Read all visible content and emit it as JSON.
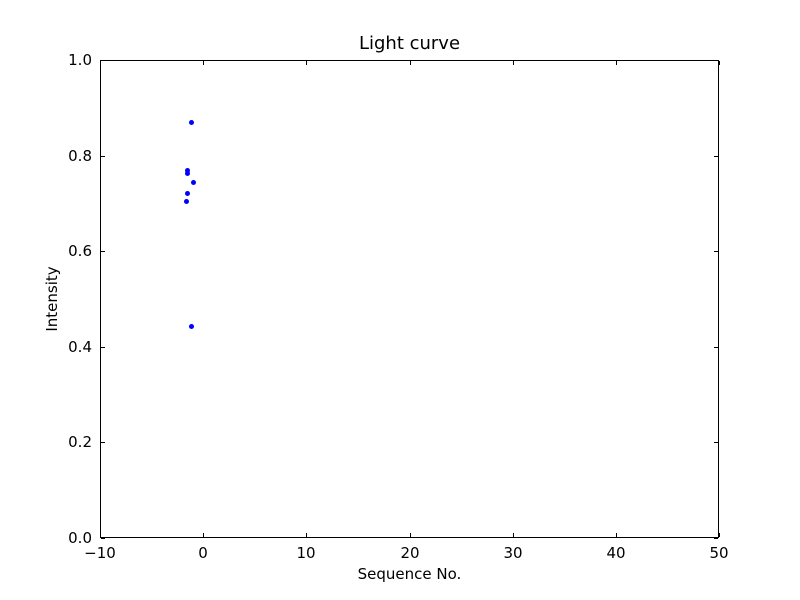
{
  "chart_data": {
    "type": "scatter",
    "title": "Light curve",
    "xlabel": "Sequence No.",
    "ylabel": "Intensity",
    "xlim": [
      -10,
      50
    ],
    "ylim": [
      0.0,
      1.0
    ],
    "xticks": [
      -10,
      0,
      10,
      20,
      30,
      40,
      50
    ],
    "xtick_labels": [
      "−10",
      "0",
      "10",
      "20",
      "30",
      "40",
      "50"
    ],
    "yticks": [
      0.0,
      0.2,
      0.4,
      0.6,
      0.8,
      1.0
    ],
    "ytick_labels": [
      "0.0",
      "0.2",
      "0.4",
      "0.6",
      "0.8",
      "1.0"
    ],
    "grid": false,
    "legend_position": "none",
    "marker": "dot",
    "marker_color": "#0000ff",
    "axis_color": "#000000",
    "background_color": "#ffffff",
    "points": [
      {
        "x": -1.1,
        "y": 0.869
      },
      {
        "x": -1.5,
        "y": 0.769
      },
      {
        "x": -1.5,
        "y": 0.763
      },
      {
        "x": -0.9,
        "y": 0.743
      },
      {
        "x": -1.5,
        "y": 0.721
      },
      {
        "x": -1.6,
        "y": 0.703
      },
      {
        "x": -1.1,
        "y": 0.442
      }
    ]
  }
}
